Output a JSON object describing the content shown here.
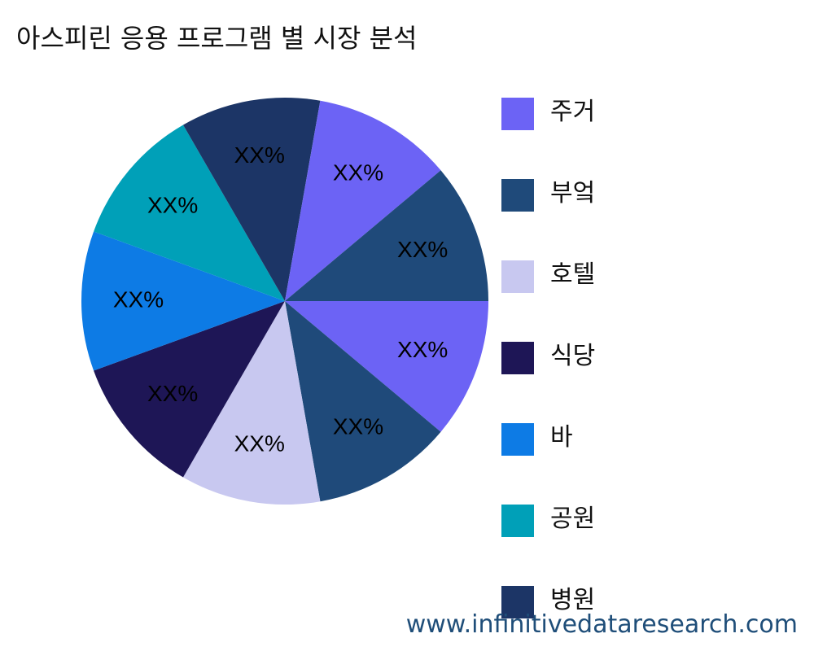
{
  "title": "아스피린 응용 프로그램 별 시장 분석",
  "watermark": "www.infinitivedataresearch.com",
  "chart_data": {
    "type": "pie",
    "title": "아스피린 응용 프로그램 별 시장 분석",
    "slice_label": "XX%",
    "legend_position": "right",
    "legend": [
      {
        "label": "주거",
        "color": "#6c63f5"
      },
      {
        "label": "부엌",
        "color": "#1f4a7a"
      },
      {
        "label": "호텔",
        "color": "#c8c8f0"
      },
      {
        "label": "식당",
        "color": "#1e1656"
      },
      {
        "label": "바",
        "color": "#0d7be5"
      },
      {
        "label": "공원",
        "color": "#00a0b8"
      },
      {
        "label": "병원",
        "color": "#1c3566"
      }
    ],
    "slices": [
      {
        "color": "#6c63f5",
        "label": "XX%",
        "value": 1
      },
      {
        "color": "#1f4a7a",
        "label": "XX%",
        "value": 1
      },
      {
        "color": "#c8c8f0",
        "label": "XX%",
        "value": 1
      },
      {
        "color": "#1e1656",
        "label": "XX%",
        "value": 1
      },
      {
        "color": "#0d7be5",
        "label": "XX%",
        "value": 1
      },
      {
        "color": "#00a0b8",
        "label": "XX%",
        "value": 1
      },
      {
        "color": "#1c3566",
        "label": "XX%",
        "value": 1
      },
      {
        "color": "#6c63f5",
        "label": "XX%",
        "value": 1
      },
      {
        "color": "#1f4a7a",
        "label": "XX%",
        "value": 1
      }
    ]
  }
}
